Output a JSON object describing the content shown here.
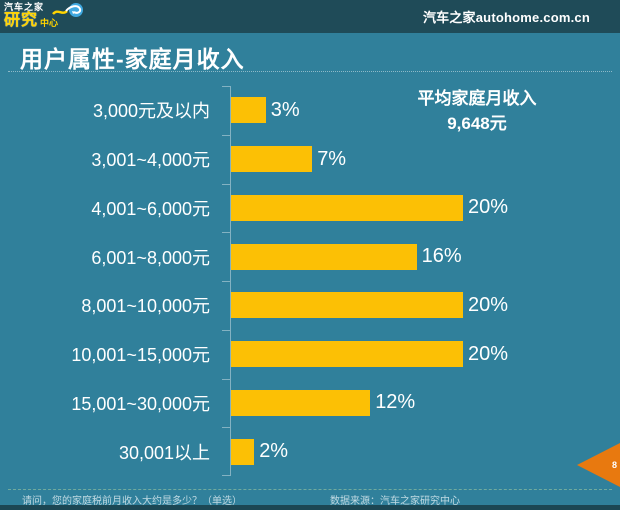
{
  "header": {
    "logo": {
      "line1": "汽车之家",
      "line2_big": "研究",
      "line2_small": "中心"
    },
    "site": "汽车之家autohome.com.cn"
  },
  "title": "用户属性-家庭月收入",
  "annotation": {
    "line1": "平均家庭月收入",
    "line2": "9,648元"
  },
  "chart_data": {
    "type": "bar",
    "orientation": "horizontal",
    "title": "用户属性-家庭月收入",
    "categories": [
      "3,000元及以内",
      "3,001~4,000元",
      "4,001~6,000元",
      "6,001~8,000元",
      "8,001~10,000元",
      "10,001~15,000元",
      "15,001~30,000元",
      "30,001以上"
    ],
    "values": [
      3,
      7,
      20,
      16,
      20,
      20,
      12,
      2
    ],
    "value_labels": [
      "3%",
      "7%",
      "20%",
      "16%",
      "20%",
      "20%",
      "12%",
      "2%"
    ],
    "annotation": "平均家庭月收入 9,648元",
    "bar_color": "#FCC005",
    "xlim": [
      0,
      33
    ],
    "grid": false,
    "legend": false
  },
  "footer": {
    "question": "请问，您的家庭税前月收入大约是多少？（单选）",
    "source": "数据来源：汽车之家研究中心"
  },
  "page_marker": {
    "number": "8",
    "color": "#E8790F"
  },
  "colors": {
    "header_bg": "#1F4B58",
    "main_bg": "#30809B",
    "bar": "#FCC005",
    "text": "#FFFFFF",
    "logo_yellow": "#FFD400",
    "arrow_orange": "#E8790F"
  }
}
